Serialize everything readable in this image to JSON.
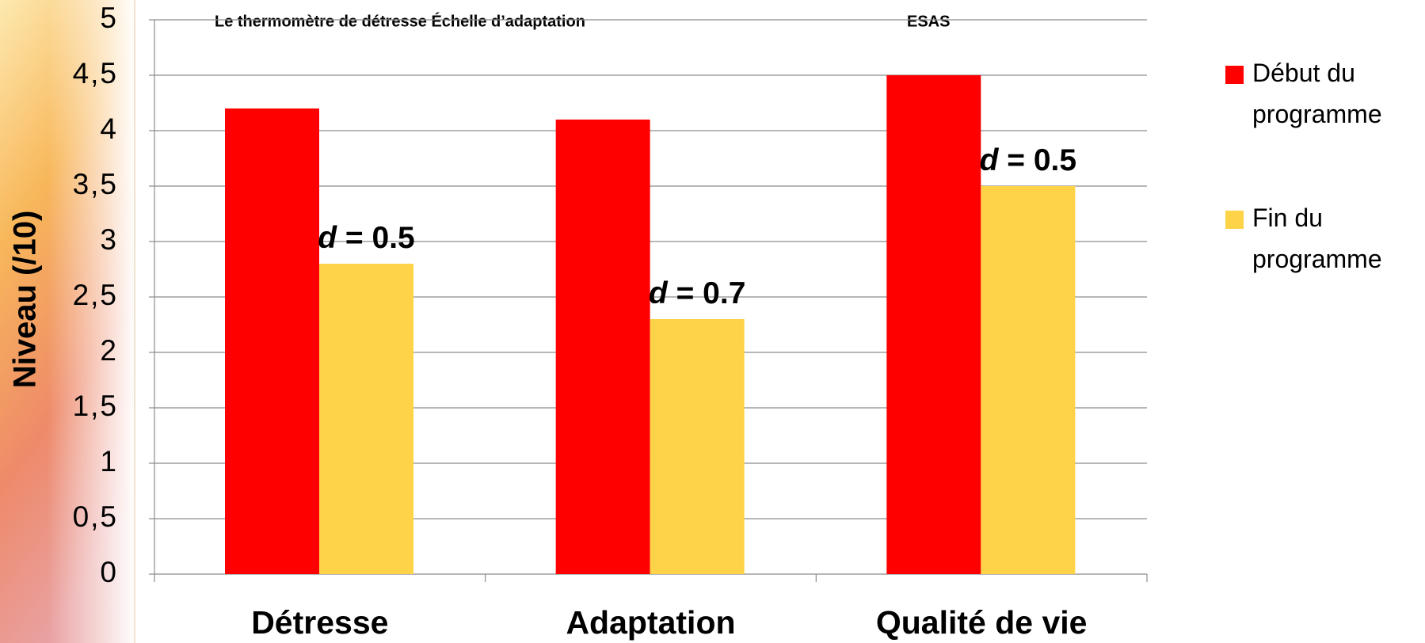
{
  "chart_data": {
    "type": "bar",
    "title": "Le thermomètre de détresse Échelle d’adaptation",
    "subtitle": "ESAS",
    "ylabel": "Niveau (/10)",
    "categories": [
      "Détresse",
      "Adaptation",
      "Qualité de vie"
    ],
    "series": [
      {
        "name": "Début du programme",
        "color": "#ff0000",
        "values": [
          4.2,
          4.1,
          4.5
        ]
      },
      {
        "name": "Fin du programme",
        "color": "#ffd347",
        "values": [
          2.8,
          2.3,
          3.5
        ]
      }
    ],
    "annotations": [
      "d = 0.5",
      "d = 0.7",
      "d = 0.5"
    ],
    "ylim": [
      0,
      5
    ],
    "yticks": [
      0,
      {
        "value": 0.5,
        "label": "0,5"
      },
      1,
      {
        "value": 1.5,
        "label": "1,5"
      },
      2,
      {
        "value": 2.5,
        "label": "2,5"
      },
      3,
      {
        "value": 3.5,
        "label": "3,5"
      },
      4,
      {
        "value": 4.5,
        "label": "4,5"
      },
      5
    ],
    "grid": true,
    "legend": "right"
  }
}
